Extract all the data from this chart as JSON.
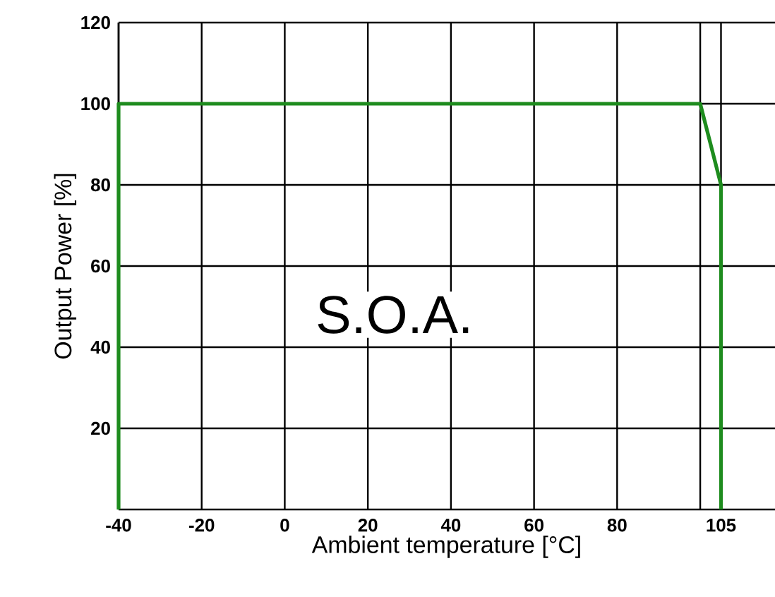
{
  "chart_data": {
    "type": "line",
    "xlabel": "Ambient temperature [°C]",
    "ylabel": "Output Power [%]",
    "x": [
      -40,
      -40,
      100,
      105,
      105
    ],
    "series": [
      {
        "color": "#1e8c1e",
        "values": [
          0,
          100,
          100,
          80,
          0
        ]
      }
    ],
    "xlim": [
      -40,
      118
    ],
    "ylim": [
      0,
      120
    ],
    "xticks": [
      -40,
      -20,
      0,
      20,
      40,
      60,
      80,
      {
        "value": 100,
        "label": null
      },
      105
    ],
    "yticks": [
      20,
      40,
      60,
      80,
      100,
      120
    ],
    "grid": true,
    "marker": "none",
    "line_style": "solid",
    "annotations": [
      "S.O.A."
    ]
  }
}
